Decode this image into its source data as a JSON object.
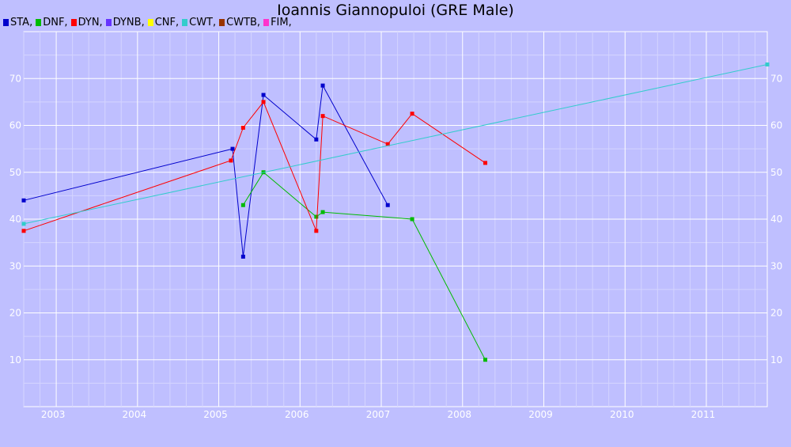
{
  "chart_data": {
    "type": "line",
    "title": "Ioannis Giannopuloi (GRE Male)",
    "legend_placement": "top-left",
    "grid": true,
    "xlim": [
      2002.6,
      2011.75
    ],
    "ylim": [
      0,
      80
    ],
    "x_ticks": [
      "2003",
      "2004",
      "2005",
      "2006",
      "2007",
      "2008",
      "2009",
      "2010",
      "2011"
    ],
    "y_ticks": [
      "10",
      "20",
      "30",
      "40",
      "50",
      "60",
      "70"
    ],
    "legend": [
      {
        "name": "STA,",
        "color": "#0000cc"
      },
      {
        "name": "DNF,",
        "color": "#00bb00"
      },
      {
        "name": "DYN,",
        "color": "#ff0000"
      },
      {
        "name": "DYNB,",
        "color": "#6633ff"
      },
      {
        "name": "CNF,",
        "color": "#ffff00"
      },
      {
        "name": "CWT,",
        "color": "#33cccc"
      },
      {
        "name": "CWTB,",
        "color": "#993300"
      },
      {
        "name": "FIM,",
        "color": "#ff33cc"
      }
    ],
    "series": [
      {
        "name": "STA",
        "color": "#0000cc",
        "points": [
          [
            2002.6,
            44
          ],
          [
            2005.17,
            55
          ],
          [
            2005.3,
            32
          ],
          [
            2005.55,
            66.5
          ],
          [
            2006.2,
            57
          ],
          [
            2006.28,
            68.5
          ],
          [
            2007.08,
            43
          ]
        ]
      },
      {
        "name": "DNF",
        "color": "#00bb00",
        "points": [
          [
            2005.3,
            43
          ],
          [
            2005.55,
            50
          ],
          [
            2006.2,
            40.5
          ],
          [
            2006.28,
            41.5
          ],
          [
            2007.38,
            40
          ],
          [
            2008.28,
            10
          ]
        ]
      },
      {
        "name": "DYN",
        "color": "#ff0000",
        "points": [
          [
            2002.6,
            37.5
          ],
          [
            2005.15,
            52.5
          ],
          [
            2005.3,
            59.5
          ],
          [
            2005.55,
            65
          ],
          [
            2006.2,
            37.5
          ],
          [
            2006.28,
            62
          ],
          [
            2007.08,
            56
          ],
          [
            2007.38,
            62.5
          ],
          [
            2008.28,
            52
          ]
        ]
      },
      {
        "name": "CWT",
        "color": "#33cccc",
        "points": [
          [
            2002.6,
            39
          ],
          [
            2011.75,
            73
          ]
        ]
      }
    ]
  }
}
